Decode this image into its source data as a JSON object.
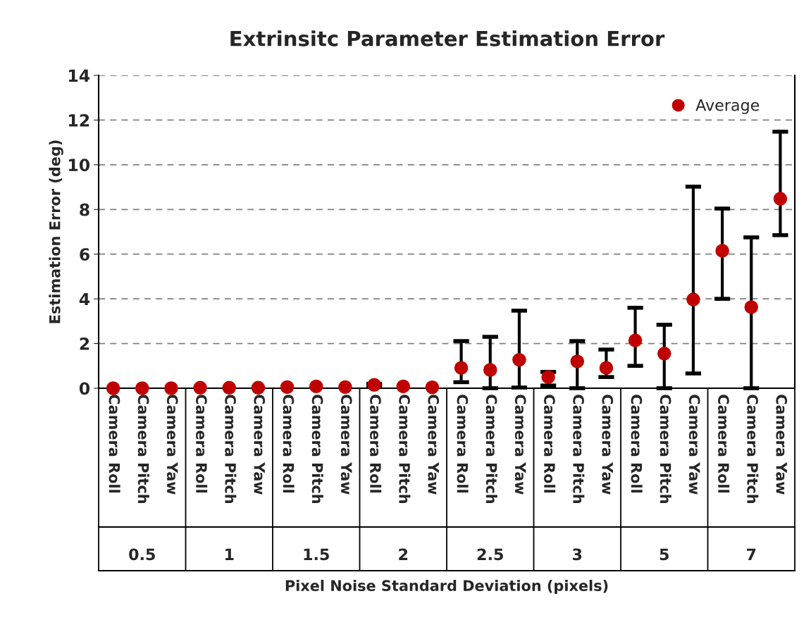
{
  "chart_data": {
    "type": "scatter",
    "title": "Extrinsitc Parameter Estimation Error",
    "ylabel": "Estimation Error (deg)",
    "categories": [
      "Camera Roll",
      "Camera Pitch",
      "Camera Yaw",
      "Camera Roll",
      "Camera Pitch",
      "Camera Yaw",
      "Camera Roll",
      "Camera Pitch",
      "Camera Yaw",
      "Camera Roll",
      "Camera Pitch",
      "Camera Yaw",
      "Camera Roll",
      "Camera Pitch",
      "Camera Yaw",
      "Camera Roll",
      "Camera Pitch",
      "Camera Yaw",
      "Camera Roll",
      "Camera Pitch",
      "Camera Yaw",
      "Camera Roll",
      "Camera Pitch",
      "Camera Yaw"
    ],
    "annotations": [
      "0.5",
      "1",
      "1.5",
      "2",
      "2.5",
      "3",
      "5",
      "7",
      "Pixel Noise Standard Deviation (pixels)"
    ],
    "series": [
      {
        "name": "Average",
        "color": "#c00000",
        "values": [
          0,
          0,
          0,
          0.02,
          0.02,
          0.02,
          0.05,
          0.08,
          0.05,
          0.15,
          0.08,
          0.04,
          0.91,
          0.82,
          1.27,
          0.5,
          1.2,
          0.91,
          2.14,
          1.55,
          3.97,
          6.15,
          3.63,
          8.48
        ],
        "errors": [
          null,
          null,
          null,
          null,
          null,
          null,
          null,
          null,
          null,
          [
            0.1,
            0.2
          ],
          null,
          null,
          [
            0.27,
            2.11
          ],
          [
            0,
            2.3
          ],
          [
            0.03,
            3.47
          ],
          [
            0.12,
            0.73
          ],
          [
            0,
            2.11
          ],
          [
            0.5,
            1.73
          ],
          [
            1.0,
            3.6
          ],
          [
            0,
            2.84
          ],
          [
            0.66,
            9.02
          ],
          [
            4.0,
            8.04
          ],
          [
            0,
            6.75
          ],
          [
            6.85,
            11.48
          ]
        ]
      }
    ],
    "ylim": [
      0,
      14
    ],
    "yticks": [
      0,
      2,
      4,
      6,
      8,
      10,
      12,
      14
    ],
    "grid": "y",
    "legend": "top right",
    "marker": "circle"
  }
}
